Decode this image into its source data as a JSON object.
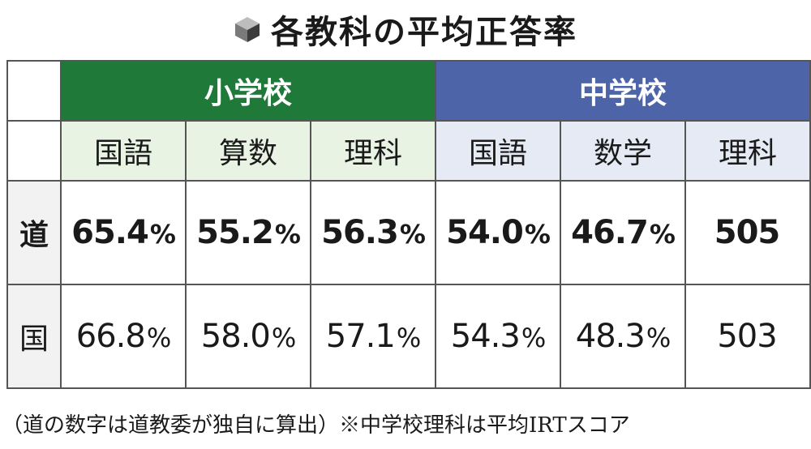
{
  "title": "各教科の平均正答率",
  "icon": "cube-icon",
  "groups": {
    "elementary": "小学校",
    "middle": "中学校"
  },
  "subjects": {
    "elementary": [
      "国語",
      "算数",
      "理科"
    ],
    "middle": [
      "国語",
      "数学",
      "理科"
    ]
  },
  "rows": [
    {
      "label": "道",
      "cells": [
        {
          "num": "65.4",
          "unit": "%"
        },
        {
          "num": "55.2",
          "unit": "%"
        },
        {
          "num": "56.3",
          "unit": "%"
        },
        {
          "num": "54.0",
          "unit": "%"
        },
        {
          "num": "46.7",
          "unit": "%"
        },
        {
          "num": "505",
          "unit": ""
        }
      ]
    },
    {
      "label": "国",
      "cells": [
        {
          "num": "66.8",
          "unit": "%"
        },
        {
          "num": "58.0",
          "unit": "%"
        },
        {
          "num": "57.1",
          "unit": "%"
        },
        {
          "num": "54.3",
          "unit": "%"
        },
        {
          "num": "48.3",
          "unit": "%"
        },
        {
          "num": "503",
          "unit": ""
        }
      ]
    }
  ],
  "footnote": "（道の数字は道教委が独自に算出）※中学校理科は平均IRTスコア",
  "colors": {
    "elementary_header": "#1f7a3a",
    "middle_header": "#4e64a8",
    "elementary_subject_bg": "#e8f3e4",
    "middle_subject_bg": "#e6eaf4"
  }
}
